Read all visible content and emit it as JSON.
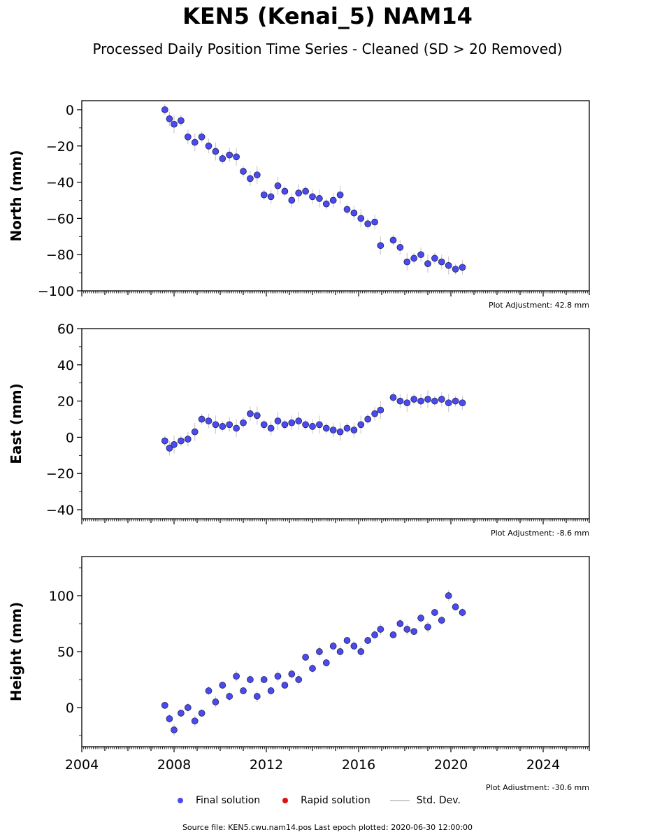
{
  "title": "KEN5 (Kenai_5) NAM14",
  "subtitle": "Processed Daily Position Time Series - Cleaned (SD > 20 Removed)",
  "legend": {
    "final": "Final solution",
    "rapid": "Rapid solution",
    "std": "Std. Dev."
  },
  "footer": "Source file: KEN5.cwu.nam14.pos  Last epoch plotted: 2020-06-30 12:00:00",
  "colors": {
    "final": "#4a4af0",
    "rapid": "#dd1111",
    "std": "#cccccc"
  },
  "chart_data": [
    {
      "type": "scatter",
      "ylabel": "North (mm)",
      "adjustment": "Plot Adjustment: 42.8 mm",
      "xlim": [
        2004,
        2026
      ],
      "ylim": [
        -100,
        5
      ],
      "yticks": [
        0,
        -20,
        -40,
        -60,
        -80,
        -100
      ],
      "ytick_labels": [
        "0",
        "−20",
        "−40",
        "−60",
        "−80",
        "−100"
      ],
      "series": [
        {
          "x": [
            2007.6,
            2007.8,
            2008.0,
            2008.3,
            2008.6,
            2008.9,
            2009.2,
            2009.5,
            2009.8,
            2010.1,
            2010.4,
            2010.7,
            2011.0,
            2011.3,
            2011.6,
            2011.9,
            2012.2,
            2012.5,
            2012.8,
            2013.1,
            2013.4,
            2013.7,
            2014.0,
            2014.3,
            2014.6,
            2014.9,
            2015.2,
            2015.5,
            2015.8,
            2016.1,
            2016.4,
            2016.7,
            2016.95,
            2017.5,
            2017.8,
            2018.1,
            2018.4,
            2018.7,
            2019.0,
            2019.3,
            2019.6,
            2019.9,
            2020.2,
            2020.5
          ],
          "y": [
            0,
            -5,
            -8,
            -6,
            -15,
            -18,
            -15,
            -20,
            -23,
            -27,
            -25,
            -26,
            -34,
            -38,
            -36,
            -47,
            -48,
            -42,
            -45,
            -50,
            -46,
            -45,
            -48,
            -49,
            -52,
            -50,
            -47,
            -55,
            -57,
            -60,
            -63,
            -62,
            -75,
            -72,
            -76,
            -84,
            -82,
            -80,
            -85,
            -82,
            -84,
            -86,
            -88,
            -87
          ]
        }
      ]
    },
    {
      "type": "scatter",
      "ylabel": "East (mm)",
      "adjustment": "Plot Adjustment: -8.6 mm",
      "xlim": [
        2004,
        2026
      ],
      "ylim": [
        -45,
        60
      ],
      "yticks": [
        60,
        40,
        20,
        0,
        -20,
        -40
      ],
      "ytick_labels": [
        "60",
        "40",
        "20",
        "0",
        "−20",
        "−40"
      ],
      "series": [
        {
          "x": [
            2007.6,
            2007.8,
            2008.0,
            2008.3,
            2008.6,
            2008.9,
            2009.2,
            2009.5,
            2009.8,
            2010.1,
            2010.4,
            2010.7,
            2011.0,
            2011.3,
            2011.6,
            2011.9,
            2012.2,
            2012.5,
            2012.8,
            2013.1,
            2013.4,
            2013.7,
            2014.0,
            2014.3,
            2014.6,
            2014.9,
            2015.2,
            2015.5,
            2015.8,
            2016.1,
            2016.4,
            2016.7,
            2016.95,
            2017.5,
            2017.8,
            2018.1,
            2018.4,
            2018.7,
            2019.0,
            2019.3,
            2019.6,
            2019.9,
            2020.2,
            2020.5
          ],
          "y": [
            -2,
            -6,
            -4,
            -2,
            -1,
            3,
            10,
            9,
            7,
            6,
            7,
            5,
            8,
            13,
            12,
            7,
            5,
            9,
            7,
            8,
            9,
            7,
            6,
            7,
            5,
            4,
            3,
            5,
            4,
            7,
            10,
            13,
            15,
            22,
            20,
            19,
            21,
            20,
            21,
            20,
            21,
            19,
            20,
            19
          ]
        }
      ]
    },
    {
      "type": "scatter",
      "ylabel": "Height (mm)",
      "adjustment": "Plot Adjustment: -30.6 mm",
      "xlim": [
        2004,
        2026
      ],
      "ylim": [
        -35,
        135
      ],
      "yticks": [
        100,
        50,
        0
      ],
      "ytick_labels": [
        "100",
        "50",
        "0"
      ],
      "xticks": [
        2004,
        2008,
        2012,
        2016,
        2020,
        2024
      ],
      "xtick_labels": [
        "2004",
        "2008",
        "2012",
        "2016",
        "2020",
        "2024"
      ],
      "series": [
        {
          "x": [
            2007.6,
            2007.8,
            2008.0,
            2008.3,
            2008.6,
            2008.9,
            2009.2,
            2009.5,
            2009.8,
            2010.1,
            2010.4,
            2010.7,
            2011.0,
            2011.3,
            2011.6,
            2011.9,
            2012.2,
            2012.5,
            2012.8,
            2013.1,
            2013.4,
            2013.7,
            2014.0,
            2014.3,
            2014.6,
            2014.9,
            2015.2,
            2015.5,
            2015.8,
            2016.1,
            2016.4,
            2016.7,
            2016.95,
            2017.5,
            2017.8,
            2018.1,
            2018.4,
            2018.7,
            2019.0,
            2019.3,
            2019.6,
            2019.9,
            2020.2,
            2020.5
          ],
          "y": [
            2,
            -10,
            -20,
            -5,
            0,
            -12,
            -5,
            15,
            5,
            20,
            10,
            28,
            15,
            25,
            10,
            25,
            15,
            28,
            20,
            30,
            25,
            45,
            35,
            50,
            40,
            55,
            50,
            60,
            55,
            50,
            60,
            65,
            70,
            65,
            75,
            70,
            68,
            80,
            72,
            85,
            78,
            100,
            90,
            85
          ]
        }
      ]
    }
  ]
}
